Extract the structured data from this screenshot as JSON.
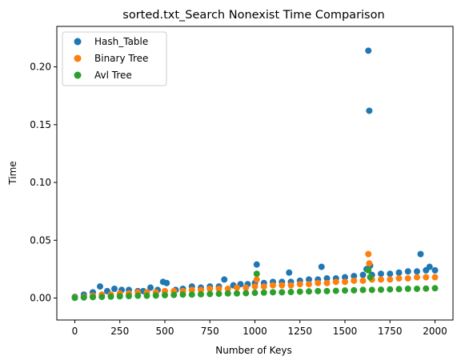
{
  "chart_data": {
    "type": "scatter",
    "title": "sorted.txt_Search Nonexist Time Comparison",
    "xlabel": "Number of Keys",
    "ylabel": "Time",
    "xlim": [
      -100,
      2100
    ],
    "ylim": [
      -0.019,
      0.235
    ],
    "xticks": [
      0,
      250,
      500,
      750,
      1000,
      1250,
      1500,
      1750,
      2000
    ],
    "xtick_labels": [
      "0",
      "250",
      "500",
      "750",
      "1000",
      "1250",
      "1500",
      "1750",
      "2000"
    ],
    "yticks": [
      0.0,
      0.05,
      0.1,
      0.15,
      0.2
    ],
    "ytick_labels": [
      "0.00",
      "0.05",
      "0.10",
      "0.15",
      "0.20"
    ],
    "grid": false,
    "legend": "top-left",
    "series": [
      {
        "name": "Hash_Table",
        "color": "#1f77b4",
        "x": [
          0,
          50,
          100,
          140,
          180,
          220,
          260,
          300,
          350,
          380,
          420,
          460,
          490,
          510,
          560,
          600,
          650,
          700,
          750,
          800,
          830,
          880,
          920,
          960,
          1000,
          1010,
          1050,
          1100,
          1150,
          1190,
          1200,
          1250,
          1300,
          1350,
          1370,
          1400,
          1450,
          1500,
          1550,
          1600,
          1620,
          1630,
          1635,
          1640,
          1650,
          1700,
          1750,
          1800,
          1850,
          1900,
          1920,
          1950,
          1970,
          2000
        ],
        "y": [
          0.001,
          0.003,
          0.005,
          0.01,
          0.006,
          0.008,
          0.007,
          0.007,
          0.006,
          0.006,
          0.009,
          0.007,
          0.014,
          0.013,
          0.007,
          0.008,
          0.01,
          0.009,
          0.01,
          0.01,
          0.016,
          0.011,
          0.012,
          0.012,
          0.013,
          0.029,
          0.013,
          0.014,
          0.014,
          0.022,
          0.014,
          0.015,
          0.016,
          0.016,
          0.027,
          0.017,
          0.017,
          0.018,
          0.019,
          0.02,
          0.025,
          0.214,
          0.162,
          0.028,
          0.02,
          0.021,
          0.021,
          0.022,
          0.023,
          0.023,
          0.038,
          0.024,
          0.027,
          0.024
        ]
      },
      {
        "name": "Binary Tree",
        "color": "#ff7f0e",
        "x": [
          0,
          50,
          100,
          150,
          200,
          250,
          300,
          350,
          400,
          450,
          500,
          550,
          600,
          650,
          700,
          750,
          800,
          850,
          900,
          950,
          1000,
          1010,
          1050,
          1100,
          1150,
          1200,
          1250,
          1300,
          1350,
          1400,
          1450,
          1500,
          1550,
          1600,
          1630,
          1635,
          1650,
          1700,
          1750,
          1800,
          1850,
          1900,
          1950,
          2000
        ],
        "y": [
          0.0005,
          0.001,
          0.002,
          0.003,
          0.003,
          0.004,
          0.004,
          0.005,
          0.005,
          0.005,
          0.006,
          0.006,
          0.006,
          0.007,
          0.007,
          0.008,
          0.008,
          0.008,
          0.009,
          0.009,
          0.01,
          0.016,
          0.01,
          0.011,
          0.011,
          0.011,
          0.012,
          0.012,
          0.013,
          0.013,
          0.014,
          0.014,
          0.015,
          0.015,
          0.038,
          0.03,
          0.016,
          0.016,
          0.016,
          0.017,
          0.017,
          0.018,
          0.018,
          0.018
        ]
      },
      {
        "name": "Avl Tree",
        "color": "#2ca02c",
        "x": [
          0,
          50,
          100,
          150,
          200,
          250,
          300,
          350,
          400,
          450,
          500,
          550,
          600,
          650,
          700,
          750,
          800,
          850,
          900,
          950,
          1000,
          1010,
          1050,
          1100,
          1150,
          1200,
          1250,
          1300,
          1350,
          1400,
          1450,
          1500,
          1550,
          1600,
          1630,
          1640,
          1650,
          1700,
          1750,
          1800,
          1850,
          1900,
          1950,
          2000
        ],
        "y": [
          0.0002,
          0.0005,
          0.0008,
          0.001,
          0.0012,
          0.0015,
          0.0017,
          0.002,
          0.002,
          0.0022,
          0.0025,
          0.0027,
          0.003,
          0.003,
          0.0032,
          0.0035,
          0.0037,
          0.004,
          0.004,
          0.0042,
          0.0045,
          0.021,
          0.0047,
          0.005,
          0.005,
          0.0052,
          0.0055,
          0.0057,
          0.006,
          0.006,
          0.0062,
          0.0065,
          0.0067,
          0.007,
          0.024,
          0.018,
          0.007,
          0.0072,
          0.0075,
          0.0077,
          0.008,
          0.008,
          0.0082,
          0.0085
        ]
      }
    ]
  }
}
